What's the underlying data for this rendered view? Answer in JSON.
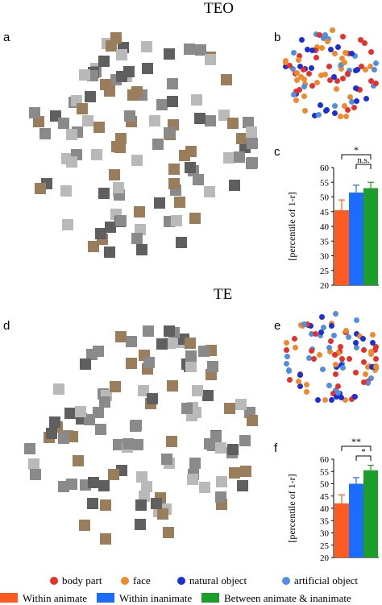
{
  "titles": {
    "top": "TEO",
    "bottom": "TE"
  },
  "panels": {
    "a": "a",
    "b": "b",
    "c": "c",
    "d": "d",
    "e": "e",
    "f": "f"
  },
  "colors": {
    "body_part": "#e8302a",
    "face": "#f0892b",
    "natural_object": "#1a2fd6",
    "artificial_object": "#4f8fe0",
    "within_animate": "#ff5a1f",
    "within_inanimate": "#1b6cff",
    "between": "#1b9e2a",
    "thumb": "#8a8a8a"
  },
  "legend": {
    "dots": [
      {
        "label": "body part",
        "color": "#e8302a"
      },
      {
        "label": "face",
        "color": "#f0892b"
      },
      {
        "label": "natural object",
        "color": "#1a2fd6"
      },
      {
        "label": "artificial object",
        "color": "#4f8fe0"
      }
    ],
    "bars": [
      {
        "label": "Within animate",
        "color": "#ff5a1f"
      },
      {
        "label": "Within inanimate",
        "color": "#1b6cff"
      },
      {
        "label": "Between animate & inanimate",
        "color": "#1b9e2a"
      }
    ]
  },
  "chart_data": [
    {
      "panel": "c",
      "type": "bar",
      "ylabel": "[percentile of 1-r]",
      "ylim": [
        20,
        60
      ],
      "yticks": [
        20,
        25,
        30,
        35,
        40,
        45,
        50,
        55,
        60
      ],
      "series": [
        {
          "name": "Within animate",
          "value": 45.5,
          "error": 3.5
        },
        {
          "name": "Within inanimate",
          "value": 51.5,
          "error": 2.5
        },
        {
          "name": "Between animate & inanimate",
          "value": 53,
          "error": 2
        }
      ],
      "annotations": [
        "*",
        "n.s."
      ]
    },
    {
      "panel": "f",
      "type": "bar",
      "ylabel": "[percentile of 1-r]",
      "ylim": [
        20,
        60
      ],
      "yticks": [
        20,
        25,
        30,
        35,
        40,
        45,
        50,
        55,
        60
      ],
      "series": [
        {
          "name": "Within animate",
          "value": 42,
          "error": 3.5
        },
        {
          "name": "Within inanimate",
          "value": 50,
          "error": 2.5
        },
        {
          "name": "Between animate & inanimate",
          "value": 55.5,
          "error": 2
        }
      ],
      "annotations": [
        "**",
        "*"
      ]
    }
  ]
}
